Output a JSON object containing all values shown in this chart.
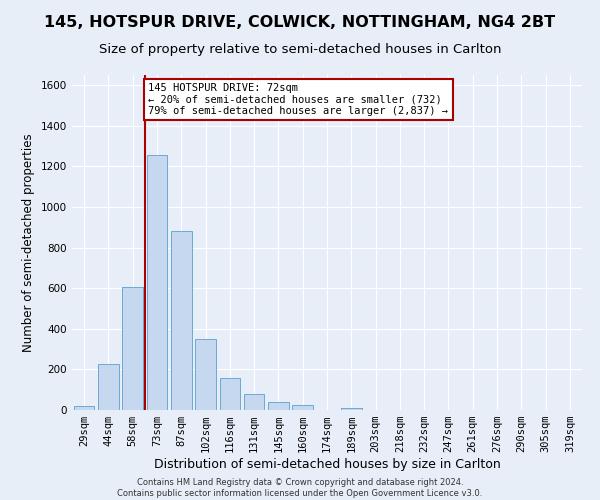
{
  "title": "145, HOTSPUR DRIVE, COLWICK, NOTTINGHAM, NG4 2BT",
  "subtitle": "Size of property relative to semi-detached houses in Carlton",
  "xlabel": "Distribution of semi-detached houses by size in Carlton",
  "ylabel": "Number of semi-detached properties",
  "categories": [
    "29sqm",
    "44sqm",
    "58sqm",
    "73sqm",
    "87sqm",
    "102sqm",
    "116sqm",
    "131sqm",
    "145sqm",
    "160sqm",
    "174sqm",
    "189sqm",
    "203sqm",
    "218sqm",
    "232sqm",
    "247sqm",
    "261sqm",
    "276sqm",
    "290sqm",
    "305sqm",
    "319sqm"
  ],
  "values": [
    20,
    225,
    605,
    1255,
    880,
    350,
    158,
    78,
    38,
    25,
    0,
    12,
    0,
    0,
    0,
    0,
    0,
    0,
    0,
    0,
    0
  ],
  "bar_color": "#c5d8f0",
  "bar_edge_color": "#6aaad4",
  "vline_color": "#aa0000",
  "vline_x_index": 2.5,
  "annotation_text": "145 HOTSPUR DRIVE: 72sqm\n← 20% of semi-detached houses are smaller (732)\n79% of semi-detached houses are larger (2,837) →",
  "annotation_box_color": "#ffffff",
  "annotation_box_edge_color": "#aa0000",
  "ylim": [
    0,
    1650
  ],
  "background_color": "#e8eef8",
  "footer_line1": "Contains HM Land Registry data © Crown copyright and database right 2024.",
  "footer_line2": "Contains public sector information licensed under the Open Government Licence v3.0.",
  "grid_color": "#ffffff",
  "title_fontsize": 11.5,
  "subtitle_fontsize": 9.5,
  "tick_fontsize": 7.5,
  "ylabel_fontsize": 8.5,
  "xlabel_fontsize": 9,
  "footer_fontsize": 6,
  "annotation_fontsize": 7.5
}
